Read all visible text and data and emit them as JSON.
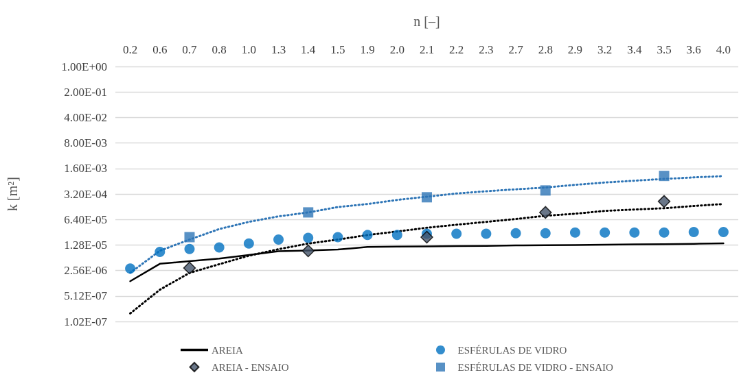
{
  "chart_data": {
    "type": "line",
    "xlabel": "n [–]",
    "ylabel": "k [m²]",
    "categories": [
      "0.2",
      "0.6",
      "0.7",
      "0.8",
      "1.0",
      "1.3",
      "1.4",
      "1.5",
      "1.9",
      "2.0",
      "2.1",
      "2.2",
      "2.3",
      "2.7",
      "2.8",
      "2.9",
      "3.2",
      "3.4",
      "3.5",
      "3.6",
      "4.0"
    ],
    "log": "y",
    "grid": "y",
    "legend": "bottom",
    "ylim": [
      1.024e-07,
      1
    ],
    "yticks": [
      {
        "value": 1.024e-07,
        "label": "1.02E-07"
      },
      {
        "value": 5.12e-07,
        "label": "5.12E-07"
      },
      {
        "value": 2.56e-06,
        "label": "2.56E-06"
      },
      {
        "value": 1.28e-05,
        "label": "1.28E-05"
      },
      {
        "value": 6.4e-05,
        "label": "6.40E-05"
      },
      {
        "value": 0.00032,
        "label": "3.20E-04"
      },
      {
        "value": 0.0016,
        "label": "1.60E-03"
      },
      {
        "value": 0.008,
        "label": "8.00E-03"
      },
      {
        "value": 0.04,
        "label": "4.00E-02"
      },
      {
        "value": 0.2,
        "label": "2.00E-01"
      },
      {
        "value": 1,
        "label": "1.00E+00"
      }
    ],
    "series": [
      {
        "name": "AREIA",
        "type": "line",
        "color": "#000000",
        "marker": "none",
        "line_style": "solid",
        "values": [
          1.3e-06,
          3.9e-06,
          4.6e-06,
          5.4e-06,
          6.8e-06,
          8.6e-06,
          9e-06,
          9.6e-06,
          1.13e-05,
          1.16e-05,
          1.17e-05,
          1.19e-05,
          1.21e-05,
          1.25e-05,
          1.26e-05,
          1.27e-05,
          1.3e-05,
          1.33e-05,
          1.35e-05,
          1.38e-05,
          1.42e-05
        ]
      },
      {
        "name": "ESFÉRULAS DE VIDRO",
        "type": "scatter",
        "color": "#0070c0",
        "marker": "circle",
        "values": [
          2.9e-06,
          8.3e-06,
          9.9e-06,
          1.1e-05,
          1.4e-05,
          1.8e-05,
          2e-05,
          2.1e-05,
          2.4e-05,
          2.4e-05,
          2.6e-05,
          2.6e-05,
          2.6e-05,
          2.7e-05,
          2.7e-05,
          2.8e-05,
          2.8e-05,
          2.8e-05,
          2.8e-05,
          2.9e-05,
          2.9e-05
        ]
      },
      {
        "name": "AREIA - ENSAIO",
        "type": "scatter",
        "color": "#44546a",
        "marker": "diamond",
        "values": [
          null,
          null,
          3e-06,
          null,
          null,
          null,
          8.8e-06,
          null,
          null,
          null,
          2.1e-05,
          null,
          null,
          null,
          0.0001,
          null,
          null,
          null,
          0.0002,
          null,
          null
        ]
      },
      {
        "name": "ESFÉRULAS DE VIDRO - ENSAIO",
        "type": "scatter",
        "color": "#2e75b6",
        "marker": "square",
        "values": [
          null,
          null,
          2.1e-05,
          null,
          null,
          null,
          0.0001,
          null,
          null,
          null,
          0.00026,
          null,
          null,
          null,
          0.0004,
          null,
          null,
          null,
          0.001,
          null,
          null
        ]
      },
      {
        "type": "line",
        "color": "#000000",
        "marker": "none",
        "line_style": "dotted",
        "values": [
          1.7e-07,
          7.6e-07,
          2.2e-06,
          3.8e-06,
          6.5e-06,
          9.8e-06,
          1.4e-05,
          1.8e-05,
          2.4e-05,
          3e-05,
          3.8e-05,
          4.6e-05,
          5.5e-05,
          6.6e-05,
          8.1e-05,
          9.2e-05,
          0.00011,
          0.00012,
          0.00013,
          0.00015,
          0.00017
        ]
      },
      {
        "type": "line",
        "color": "#2e75b6",
        "marker": "none",
        "line_style": "dotted",
        "values": [
          2.2e-06,
          8.9e-06,
          1.8e-05,
          3.5e-05,
          5.5e-05,
          7.8e-05,
          0.0001,
          0.00014,
          0.00017,
          0.00022,
          0.00027,
          0.00033,
          0.00038,
          0.00043,
          0.00048,
          0.00057,
          0.00066,
          0.00074,
          0.00083,
          0.00091,
          0.00099
        ]
      }
    ]
  }
}
